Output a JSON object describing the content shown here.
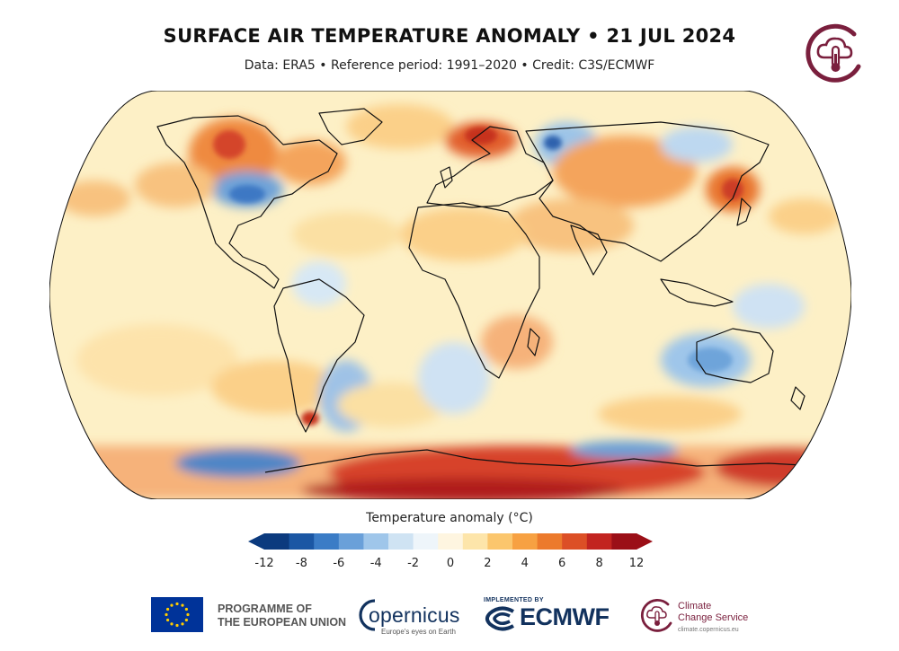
{
  "header": {
    "title": "SURFACE AIR TEMPERATURE ANOMALY • 21 JUL 2024",
    "subtitle": "Data: ERA5 • Reference period: 1991–2020 • Credit: C3S/ECMWF"
  },
  "map": {
    "projection": "Robinson",
    "variable": "Surface air temperature anomaly",
    "date": "21 JUL 2024",
    "dominant_field_color": "#fdf0c6",
    "notable_warm_regions": [
      "Antarctica coast",
      "western North America",
      "Scandinavia",
      "Eastern Europe",
      "Central Asia",
      "Japan",
      "Southern Africa",
      "North Africa"
    ],
    "notable_cool_regions": [
      "central Canada",
      "western Siberia",
      "Australia",
      "southern South America",
      "Southern Ocean"
    ]
  },
  "legend": {
    "title": "Temperature anomaly (°C)",
    "ticks": [
      "-12",
      "-8",
      "-6",
      "-4",
      "-2",
      "0",
      "2",
      "4",
      "6",
      "8",
      "12"
    ],
    "colors": [
      "#0b3a7e",
      "#1b57a4",
      "#3b7cc6",
      "#6aa0d9",
      "#9fc6ea",
      "#cfe3f3",
      "#eef5fa",
      "#fef5e0",
      "#fde5aa",
      "#fbc66d",
      "#f7a142",
      "#ec7a2c",
      "#dc4f26",
      "#c22420",
      "#9b0f17"
    ]
  },
  "footer": {
    "eu_line1": "PROGRAMME OF",
    "eu_line2": "THE EUROPEAN UNION",
    "copernicus_word": "opernicus",
    "copernicus_tagline": "Europe's eyes on Earth",
    "implemented_by": "IMPLEMENTED BY",
    "ecmwf_word": "ECMWF",
    "ccs_line1": "Climate",
    "ccs_line2": "Change Service",
    "ccs_url": "climate.copernicus.eu"
  }
}
